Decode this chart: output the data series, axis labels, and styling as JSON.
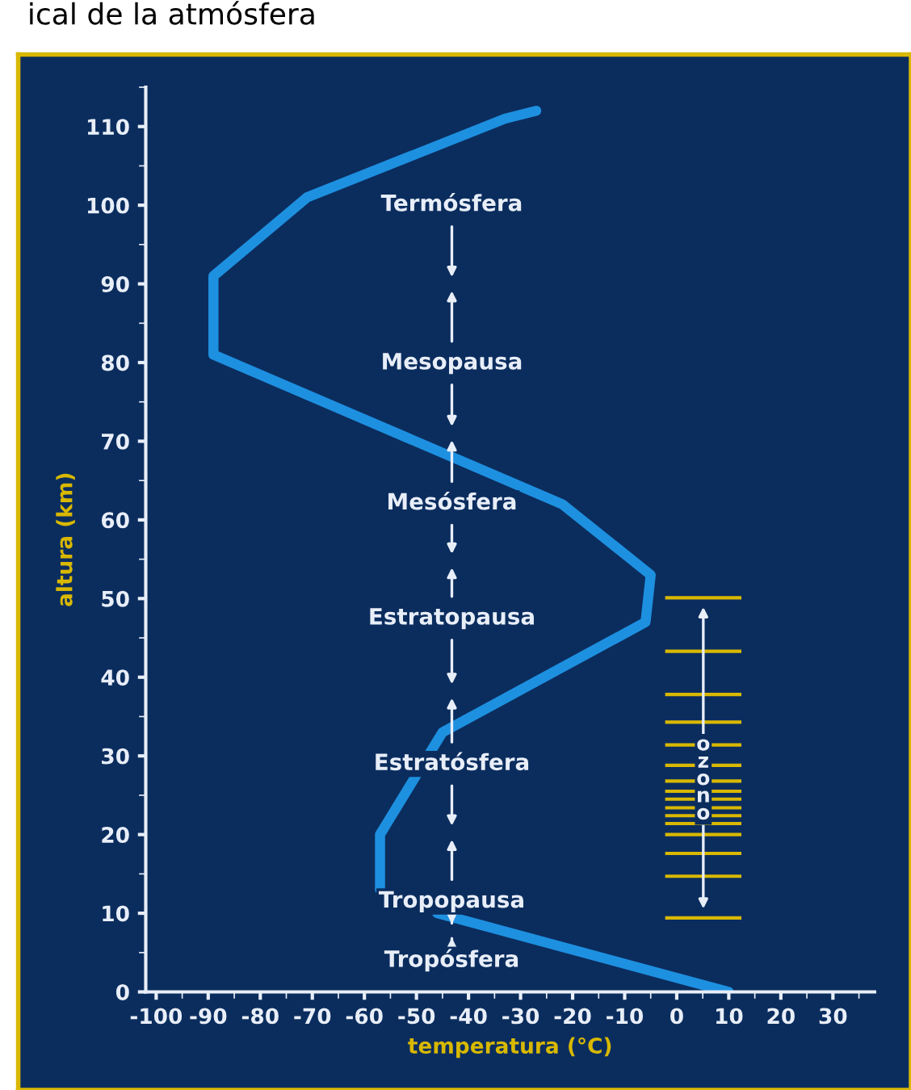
{
  "chart_data": {
    "type": "line",
    "title": "ical de la atmósfera",
    "xlabel": "temperatura (°C)",
    "ylabel": "altura (km)",
    "series": [
      {
        "color": "#1e90e0",
        "x": [
          10,
          -46,
          null,
          -57,
          -57,
          -45,
          -6,
          -5,
          -22,
          -89,
          -89,
          -71,
          -33,
          -27
        ],
        "values": [
          0,
          10,
          null,
          13,
          20,
          33,
          47,
          53,
          62,
          81,
          91,
          101,
          111,
          112
        ]
      }
    ],
    "xlim": [
      -102,
      38
    ],
    "ylim": [
      0,
      115
    ],
    "xticks": [
      -100,
      -90,
      -80,
      -70,
      -60,
      -50,
      -40,
      -30,
      -20,
      -10,
      0,
      10,
      20,
      30
    ],
    "yticks": [
      0,
      10,
      20,
      30,
      40,
      50,
      60,
      70,
      80,
      90,
      100,
      110
    ],
    "grid": false,
    "legend": false,
    "marker": "none",
    "line_style": "solid",
    "annotations": [
      "Termósfera",
      "Mesopausa",
      "Mesósfera",
      "Estratopausa",
      "Estratósfera",
      "Tropopausa",
      "Tropósfera",
      "ozono"
    ]
  }
}
